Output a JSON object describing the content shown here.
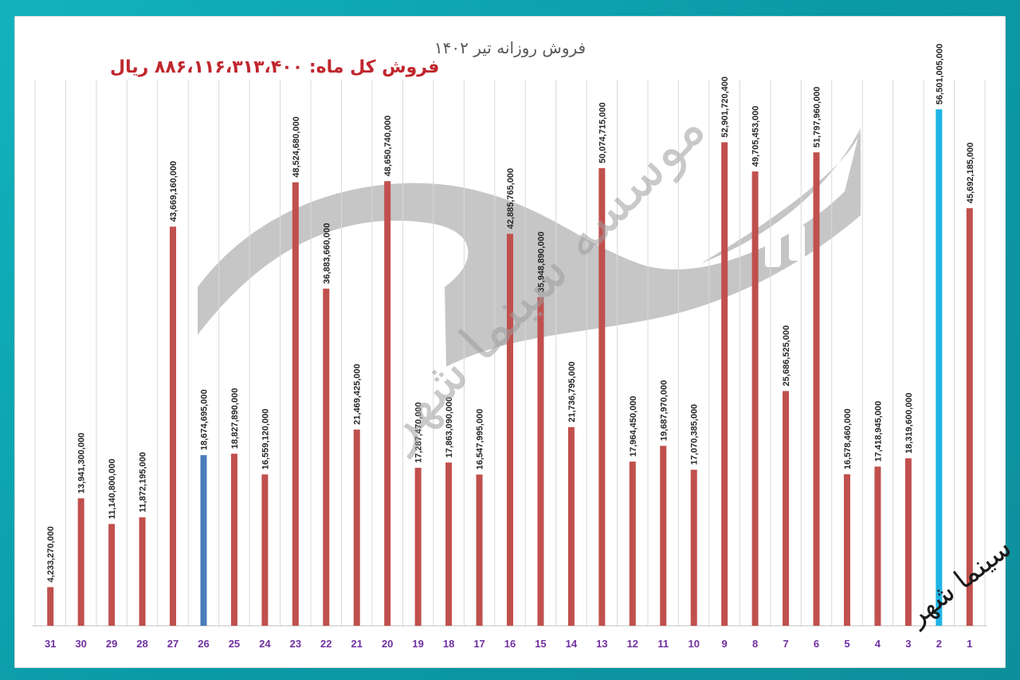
{
  "page": {
    "title": "فروش روزانه تیر ۱۴۰۲",
    "total_sales": "فروش کل ماه: ۸۸۶،۱۱۶،۳۱۳،۴۰۰ ریال",
    "watermark": "موسسه سینما شهر",
    "signature": "سینما شهر"
  },
  "chart_data": {
    "type": "bar",
    "title": "فروش روزانه تیر ۱۴۰۲",
    "categories": [
      "1",
      "2",
      "3",
      "4",
      "5",
      "6",
      "7",
      "8",
      "9",
      "10",
      "11",
      "12",
      "13",
      "14",
      "15",
      "16",
      "17",
      "18",
      "19",
      "20",
      "21",
      "22",
      "23",
      "24",
      "25",
      "26",
      "27",
      "28",
      "29",
      "30",
      "31"
    ],
    "values": [
      45692185000,
      56501005000,
      18319600000,
      17418945000,
      16578460000,
      51797960000,
      25686525000,
      49705453000,
      52901720400,
      17070385000,
      19687970000,
      17964450000,
      50074715000,
      21736795000,
      35948890000,
      42885765000,
      16547995000,
      17863090000,
      17287470000,
      48650740000,
      21469425000,
      36883660000,
      48524680000,
      16559120000,
      18827890000,
      18674695000,
      43669160000,
      11872195000,
      11140800000,
      13941300000,
      4233270000
    ],
    "value_labels": [
      "45,692,185,000",
      "56,501,005,000",
      "18,319,600,000",
      "17,418,945,000",
      "16,578,460,000",
      "51,797,960,000",
      "25,686,525,000",
      "49,705,453,000",
      "52,901,720,400",
      "17,070,385,000",
      "19,687,970,000",
      "17,964,450,000",
      "50,074,715,000",
      "21,736,795,000",
      "35,948,890,000",
      "42,885,765,000",
      "16,547,995,000",
      "17,863,090,000",
      "17,287,470,000",
      "48,650,740,000",
      "21,469,425,000",
      "36,883,660,000",
      "48,524,680,000",
      "16,559,120,000",
      "18,827,890,000",
      "18,674,695,000",
      "43,669,160,000",
      "11,872,195,000",
      "11,140,800,000",
      "13,941,300,000",
      "4,233,270,000"
    ],
    "x_order": "right-to-left",
    "ylim": [
      0,
      58000000000
    ],
    "grid": "vertical",
    "colors": {
      "default": "#c0504d",
      "highlight_max": "#1fb4e6",
      "highlight_day26": "#4a7ebb",
      "category_label": "#7030a0",
      "value_label": "#262626",
      "gridline": "#d9d9d9"
    },
    "highlight": {
      "2": "highlight_max",
      "26": "highlight_day26"
    }
  }
}
